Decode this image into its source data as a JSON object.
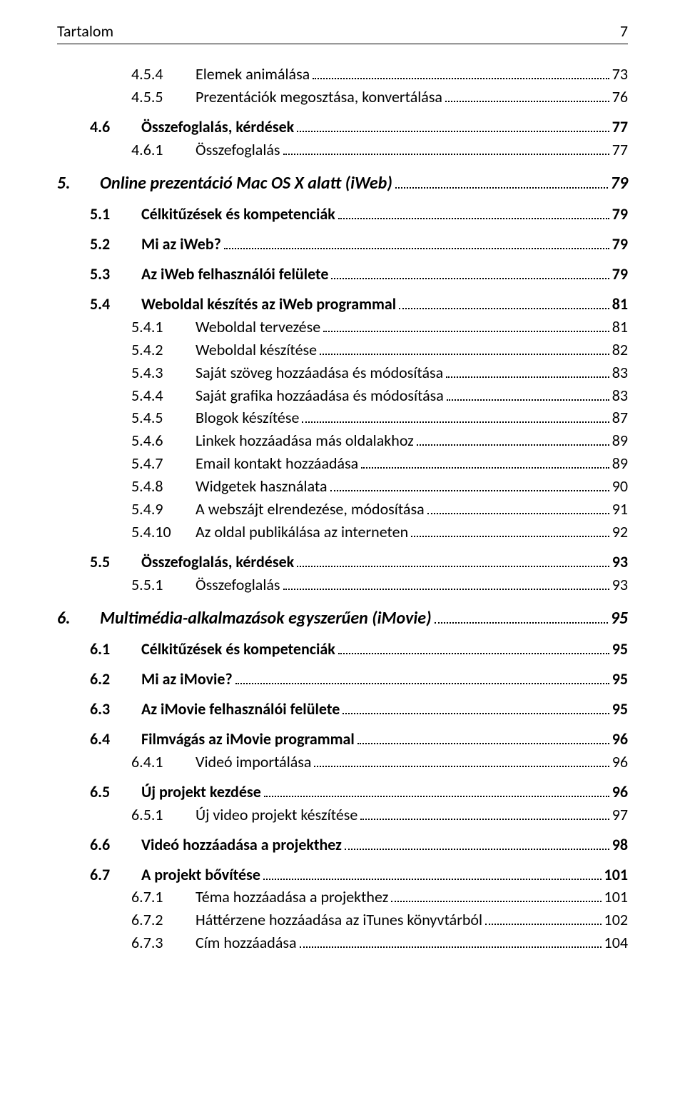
{
  "header": {
    "title": "Tartalom",
    "page": "7"
  },
  "toc": [
    {
      "lvl": 3,
      "num": "4.5.4",
      "title": "Elemek animálása",
      "page": "73"
    },
    {
      "lvl": 3,
      "num": "4.5.5",
      "title": "Prezentációk megosztása, konvertálása",
      "page": "76"
    },
    {
      "lvl": 2,
      "num": "4.6",
      "title": "Összefoglalás, kérdések",
      "page": "77",
      "gap": true
    },
    {
      "lvl": 3,
      "num": "4.6.1",
      "title": "Összefoglalás",
      "page": "77"
    },
    {
      "lvl": 1,
      "num": "5.",
      "title": "Online prezentáció Mac OS X alatt (iWeb)",
      "page": "79",
      "gap": true
    },
    {
      "lvl": 2,
      "num": "5.1",
      "title": "Célkitűzések és kompetenciák",
      "page": "79",
      "gap": true
    },
    {
      "lvl": 2,
      "num": "5.2",
      "title": "Mi az iWeb?",
      "page": "79",
      "gap": true
    },
    {
      "lvl": 2,
      "num": "5.3",
      "title": "Az iWeb felhasználói felülete",
      "page": "79",
      "gap": true
    },
    {
      "lvl": 2,
      "num": "5.4",
      "title": "Weboldal készítés az iWeb programmal",
      "page": "81",
      "gap": true
    },
    {
      "lvl": 3,
      "num": "5.4.1",
      "title": "Weboldal tervezése",
      "page": "81"
    },
    {
      "lvl": 3,
      "num": "5.4.2",
      "title": "Weboldal készítése",
      "page": "82"
    },
    {
      "lvl": 3,
      "num": "5.4.3",
      "title": "Saját szöveg hozzáadása és módosítása",
      "page": "83"
    },
    {
      "lvl": 3,
      "num": "5.4.4",
      "title": "Saját grafika hozzáadása és módosítása",
      "page": "83"
    },
    {
      "lvl": 3,
      "num": "5.4.5",
      "title": "Blogok készítése",
      "page": "87"
    },
    {
      "lvl": 3,
      "num": "5.4.6",
      "title": "Linkek hozzáadása más oldalakhoz",
      "page": "89"
    },
    {
      "lvl": 3,
      "num": "5.4.7",
      "title": "Email kontakt hozzáadása",
      "page": "89"
    },
    {
      "lvl": 3,
      "num": "5.4.8",
      "title": "Widgetek használata",
      "page": "90"
    },
    {
      "lvl": 3,
      "num": "5.4.9",
      "title": "A webszájt elrendezése, módosítása",
      "page": "91"
    },
    {
      "lvl": 3,
      "num": "5.4.10",
      "title": "Az oldal publikálása az interneten",
      "page": "92"
    },
    {
      "lvl": 2,
      "num": "5.5",
      "title": "Összefoglalás, kérdések",
      "page": "93",
      "gap": true
    },
    {
      "lvl": 3,
      "num": "5.5.1",
      "title": "Összefoglalás",
      "page": "93"
    },
    {
      "lvl": 1,
      "num": "6.",
      "title": "Multimédia-alkalmazások egyszerűen (iMovie)",
      "page": "95",
      "gap": true
    },
    {
      "lvl": 2,
      "num": "6.1",
      "title": "Célkitűzések és kompetenciák",
      "page": "95",
      "gap": true
    },
    {
      "lvl": 2,
      "num": "6.2",
      "title": "Mi az iMovie?",
      "page": "95",
      "gap": true
    },
    {
      "lvl": 2,
      "num": "6.3",
      "title": "Az iMovie felhasználói felülete",
      "page": "95",
      "gap": true
    },
    {
      "lvl": 2,
      "num": "6.4",
      "title": "Filmvágás az iMovie programmal",
      "page": "96",
      "gap": true
    },
    {
      "lvl": 3,
      "num": "6.4.1",
      "title": "Videó importálása",
      "page": "96"
    },
    {
      "lvl": 2,
      "num": "6.5",
      "title": "Új projekt kezdése",
      "page": "96",
      "gap": true
    },
    {
      "lvl": 3,
      "num": "6.5.1",
      "title": "Új video projekt készítése",
      "page": "97"
    },
    {
      "lvl": 2,
      "num": "6.6",
      "title": "Videó hozzáadása a projekthez",
      "page": "98",
      "gap": true
    },
    {
      "lvl": 2,
      "num": "6.7",
      "title": "A projekt bővítése",
      "page": "101",
      "gap": true
    },
    {
      "lvl": 3,
      "num": "6.7.1",
      "title": "Téma hozzáadása a projekthez",
      "page": "101"
    },
    {
      "lvl": 3,
      "num": "6.7.2",
      "title": "Háttérzene hozzáadása az iTunes könyvtárból",
      "page": "102"
    },
    {
      "lvl": 3,
      "num": "6.7.3",
      "title": "Cím hozzáadása",
      "page": "104"
    }
  ]
}
